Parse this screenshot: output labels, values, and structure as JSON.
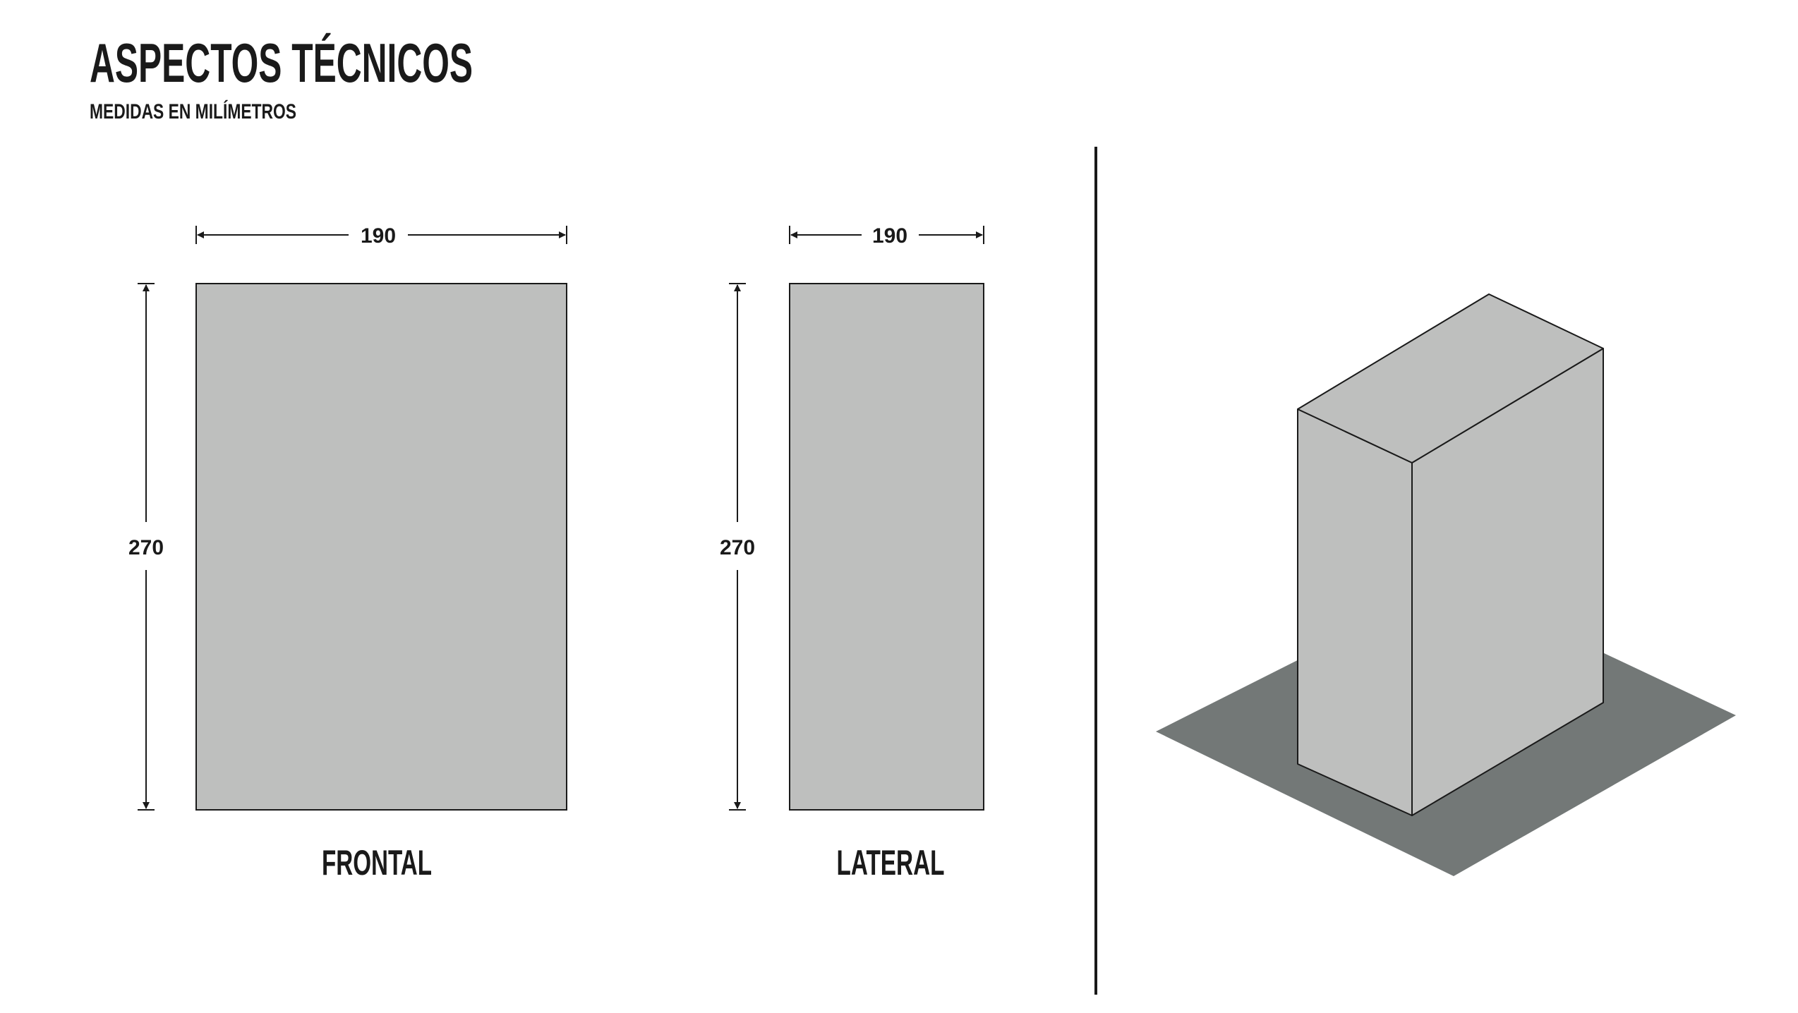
{
  "header": {
    "title": "ASPECTOS TÉCNICOS",
    "subtitle": "MEDIDAS EN MILÍMETROS"
  },
  "views": {
    "frontal": {
      "label": "FRONTAL",
      "width_label": "190",
      "height_label": "270"
    },
    "lateral": {
      "label": "LATERAL",
      "width_label": "190",
      "height_label": "270"
    }
  },
  "colors": {
    "box_fill": "#bebfbe",
    "shadow_fill": "#737877",
    "stroke": "#1a1a1a",
    "text": "#1a1a1a"
  }
}
